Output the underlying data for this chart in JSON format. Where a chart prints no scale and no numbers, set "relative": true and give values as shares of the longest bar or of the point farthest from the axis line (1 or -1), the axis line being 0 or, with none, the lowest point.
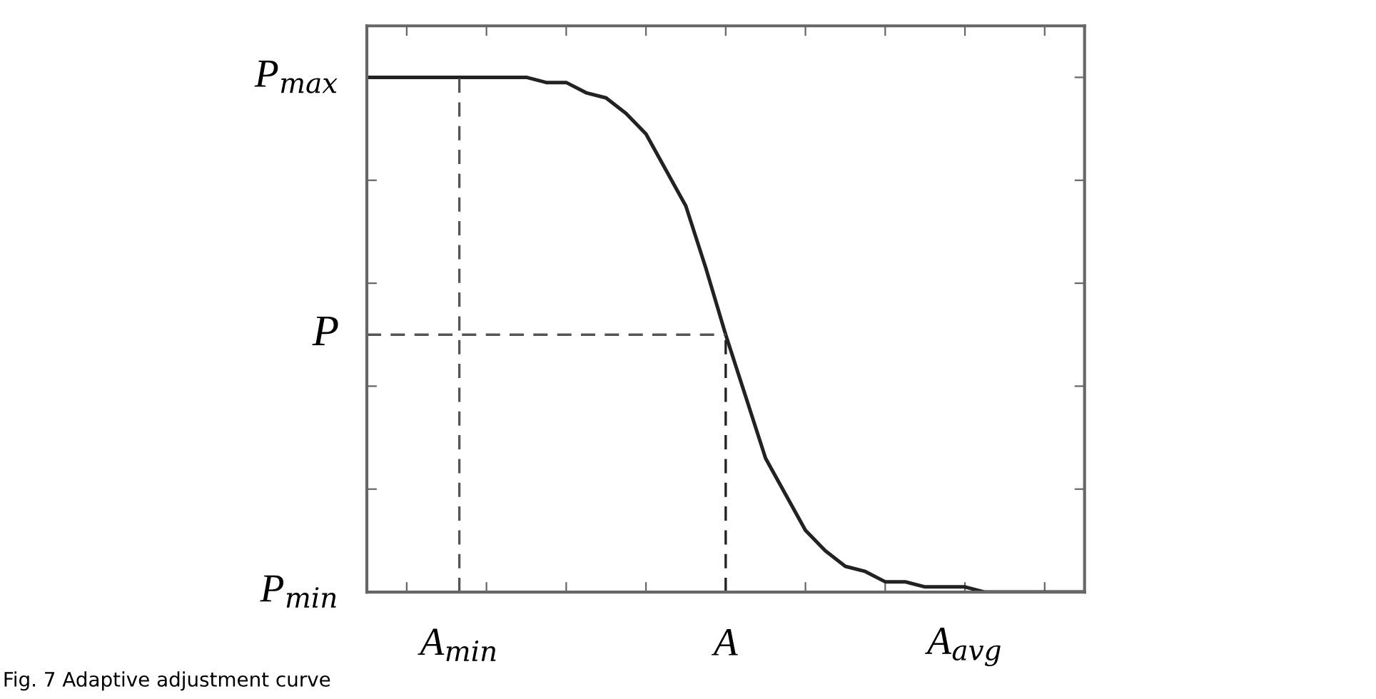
{
  "chart_data": {
    "type": "line",
    "relative": true,
    "categories": [
      null,
      null,
      null,
      null,
      null,
      null,
      null,
      null,
      null,
      null,
      null,
      null,
      null,
      null,
      null,
      null,
      null,
      null,
      null,
      null,
      null,
      null,
      null,
      null,
      null,
      null,
      null,
      null,
      null,
      null,
      null,
      null,
      null,
      null,
      null,
      null,
      null
    ],
    "series": [
      {
        "color": "#222222",
        "values": [
          1,
          1,
          1,
          1,
          1,
          1,
          1,
          1,
          1,
          0.99,
          0.99,
          0.97,
          0.96,
          0.93,
          0.89,
          0.82,
          0.75,
          0.63,
          0.5,
          0.38,
          0.26,
          0.19,
          0.12,
          0.08,
          0.05,
          0.04,
          0.02,
          0.02,
          0.01,
          0.01,
          0.01,
          0,
          0,
          0,
          0,
          0,
          0
        ]
      }
    ],
    "ref_lines": [
      {
        "axis": "y",
        "value": 0.5,
        "label": "P",
        "line_style": "dashed",
        "color": "#555555"
      }
    ],
    "grid": false,
    "marker": "none",
    "line_style": "solid",
    "annotations": [
      "P$_{max}$",
      "P$_{min}$",
      "A$_{min}$",
      "A",
      "A$_{avg}$",
      "Fig. 7 Adaptive adjustment curve"
    ]
  }
}
